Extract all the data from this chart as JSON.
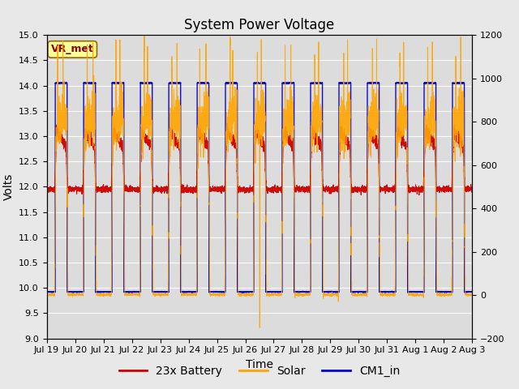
{
  "title": "System Power Voltage",
  "xlabel": "Time",
  "ylabel": "Volts",
  "ylim_left": [
    9.0,
    15.0
  ],
  "ylim_right": [
    -200,
    1200
  ],
  "background_color": "#e8e8e8",
  "plot_bg_color": "#dcdcdc",
  "x_tick_labels": [
    "Jul 19",
    "Jul 20",
    "Jul 21",
    "Jul 22",
    "Jul 23",
    "Jul 24",
    "Jul 25",
    "Jul 26",
    "Jul 27",
    "Jul 28",
    "Jul 29",
    "Jul 30",
    "Jul 31",
    "Aug 1",
    "Aug 2",
    "Aug 3"
  ],
  "legend_labels": [
    "23x Battery",
    "Solar",
    "CM1_in"
  ],
  "legend_colors": [
    "#cc0000",
    "#ffa500",
    "#0000cc"
  ],
  "vr_met_label": "VR_met",
  "vr_met_bg": "#ffff99",
  "vr_met_border": "#996600",
  "vr_met_text_color": "#880000",
  "title_fontsize": 12,
  "label_fontsize": 10,
  "tick_fontsize": 8,
  "legend_fontsize": 10,
  "right_yticks": [
    -200,
    0,
    200,
    400,
    600,
    800,
    1000,
    1200
  ],
  "left_yticks": [
    9.0,
    9.5,
    10.0,
    10.5,
    11.0,
    11.5,
    12.0,
    12.5,
    13.0,
    13.5,
    14.0,
    14.5,
    15.0
  ]
}
